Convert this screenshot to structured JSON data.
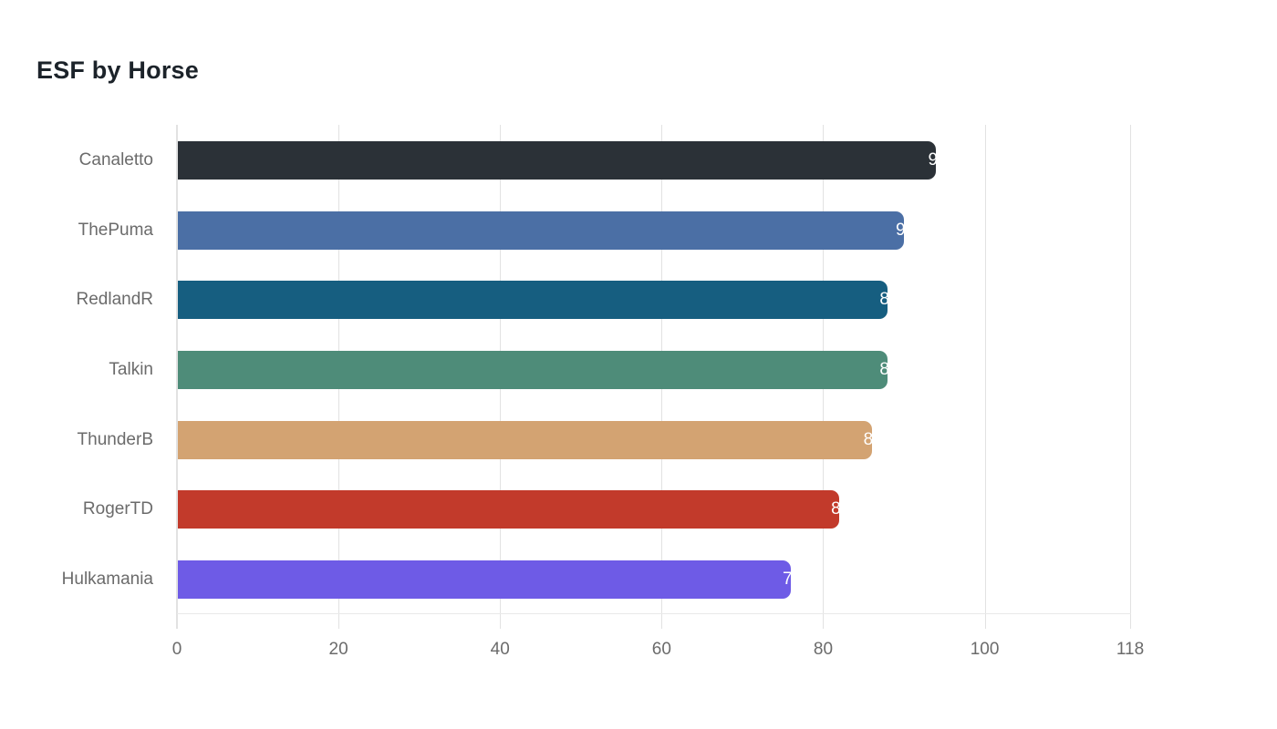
{
  "chart_data": {
    "type": "bar",
    "orientation": "horizontal",
    "title": "ESF by Horse",
    "categories": [
      "Canaletto",
      "ThePuma",
      "RedlandR",
      "Talkin",
      "ThunderB",
      "RogerTD",
      "Hulkamania"
    ],
    "values": [
      94,
      90,
      88,
      88,
      86,
      82,
      76
    ],
    "bar_colors": [
      "#2b3137",
      "#4b6fa5",
      "#165e80",
      "#4e8c79",
      "#d3a372",
      "#c23a2b",
      "#6e5be6"
    ],
    "xlabel": "",
    "ylabel": "",
    "xticks": [
      0,
      20,
      40,
      60,
      80,
      100,
      118
    ],
    "xlim": [
      0,
      118
    ],
    "grid": "vertical-only",
    "legend": "none",
    "value_labels": "white, anchored at bar end, clipped so only left sliver of first digit is visible on bar"
  },
  "colors": {
    "background": "#ffffff",
    "title_text": "#1c232a",
    "axis_label_text": "#6b6b6b",
    "gridline": "#e2e2e2",
    "value_label_text": "#ffffff"
  }
}
